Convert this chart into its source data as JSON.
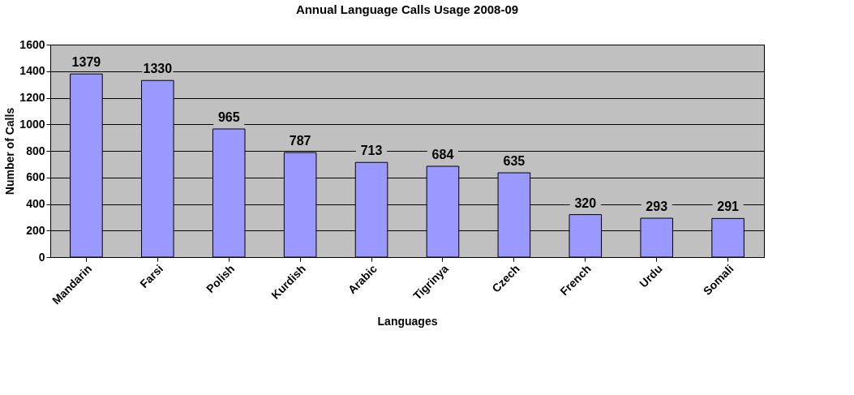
{
  "chart_data": {
    "type": "bar",
    "title": "Annual Language Calls Usage 2008-09",
    "xlabel": "Languages",
    "ylabel": "Number of Calls",
    "categories": [
      "Mandarin",
      "Farsi",
      "Polish",
      "Kurdish",
      "Arabic",
      "Tigrinya",
      "Czech",
      "French",
      "Urdu",
      "Somali"
    ],
    "values": [
      1379,
      1330,
      965,
      787,
      713,
      684,
      635,
      320,
      293,
      291
    ],
    "color": "#9999ff",
    "ylim": [
      0,
      1600
    ],
    "yticks": [
      0,
      200,
      400,
      600,
      800,
      1000,
      1200,
      1400,
      1600
    ],
    "grid": "y",
    "data_labels": true
  }
}
